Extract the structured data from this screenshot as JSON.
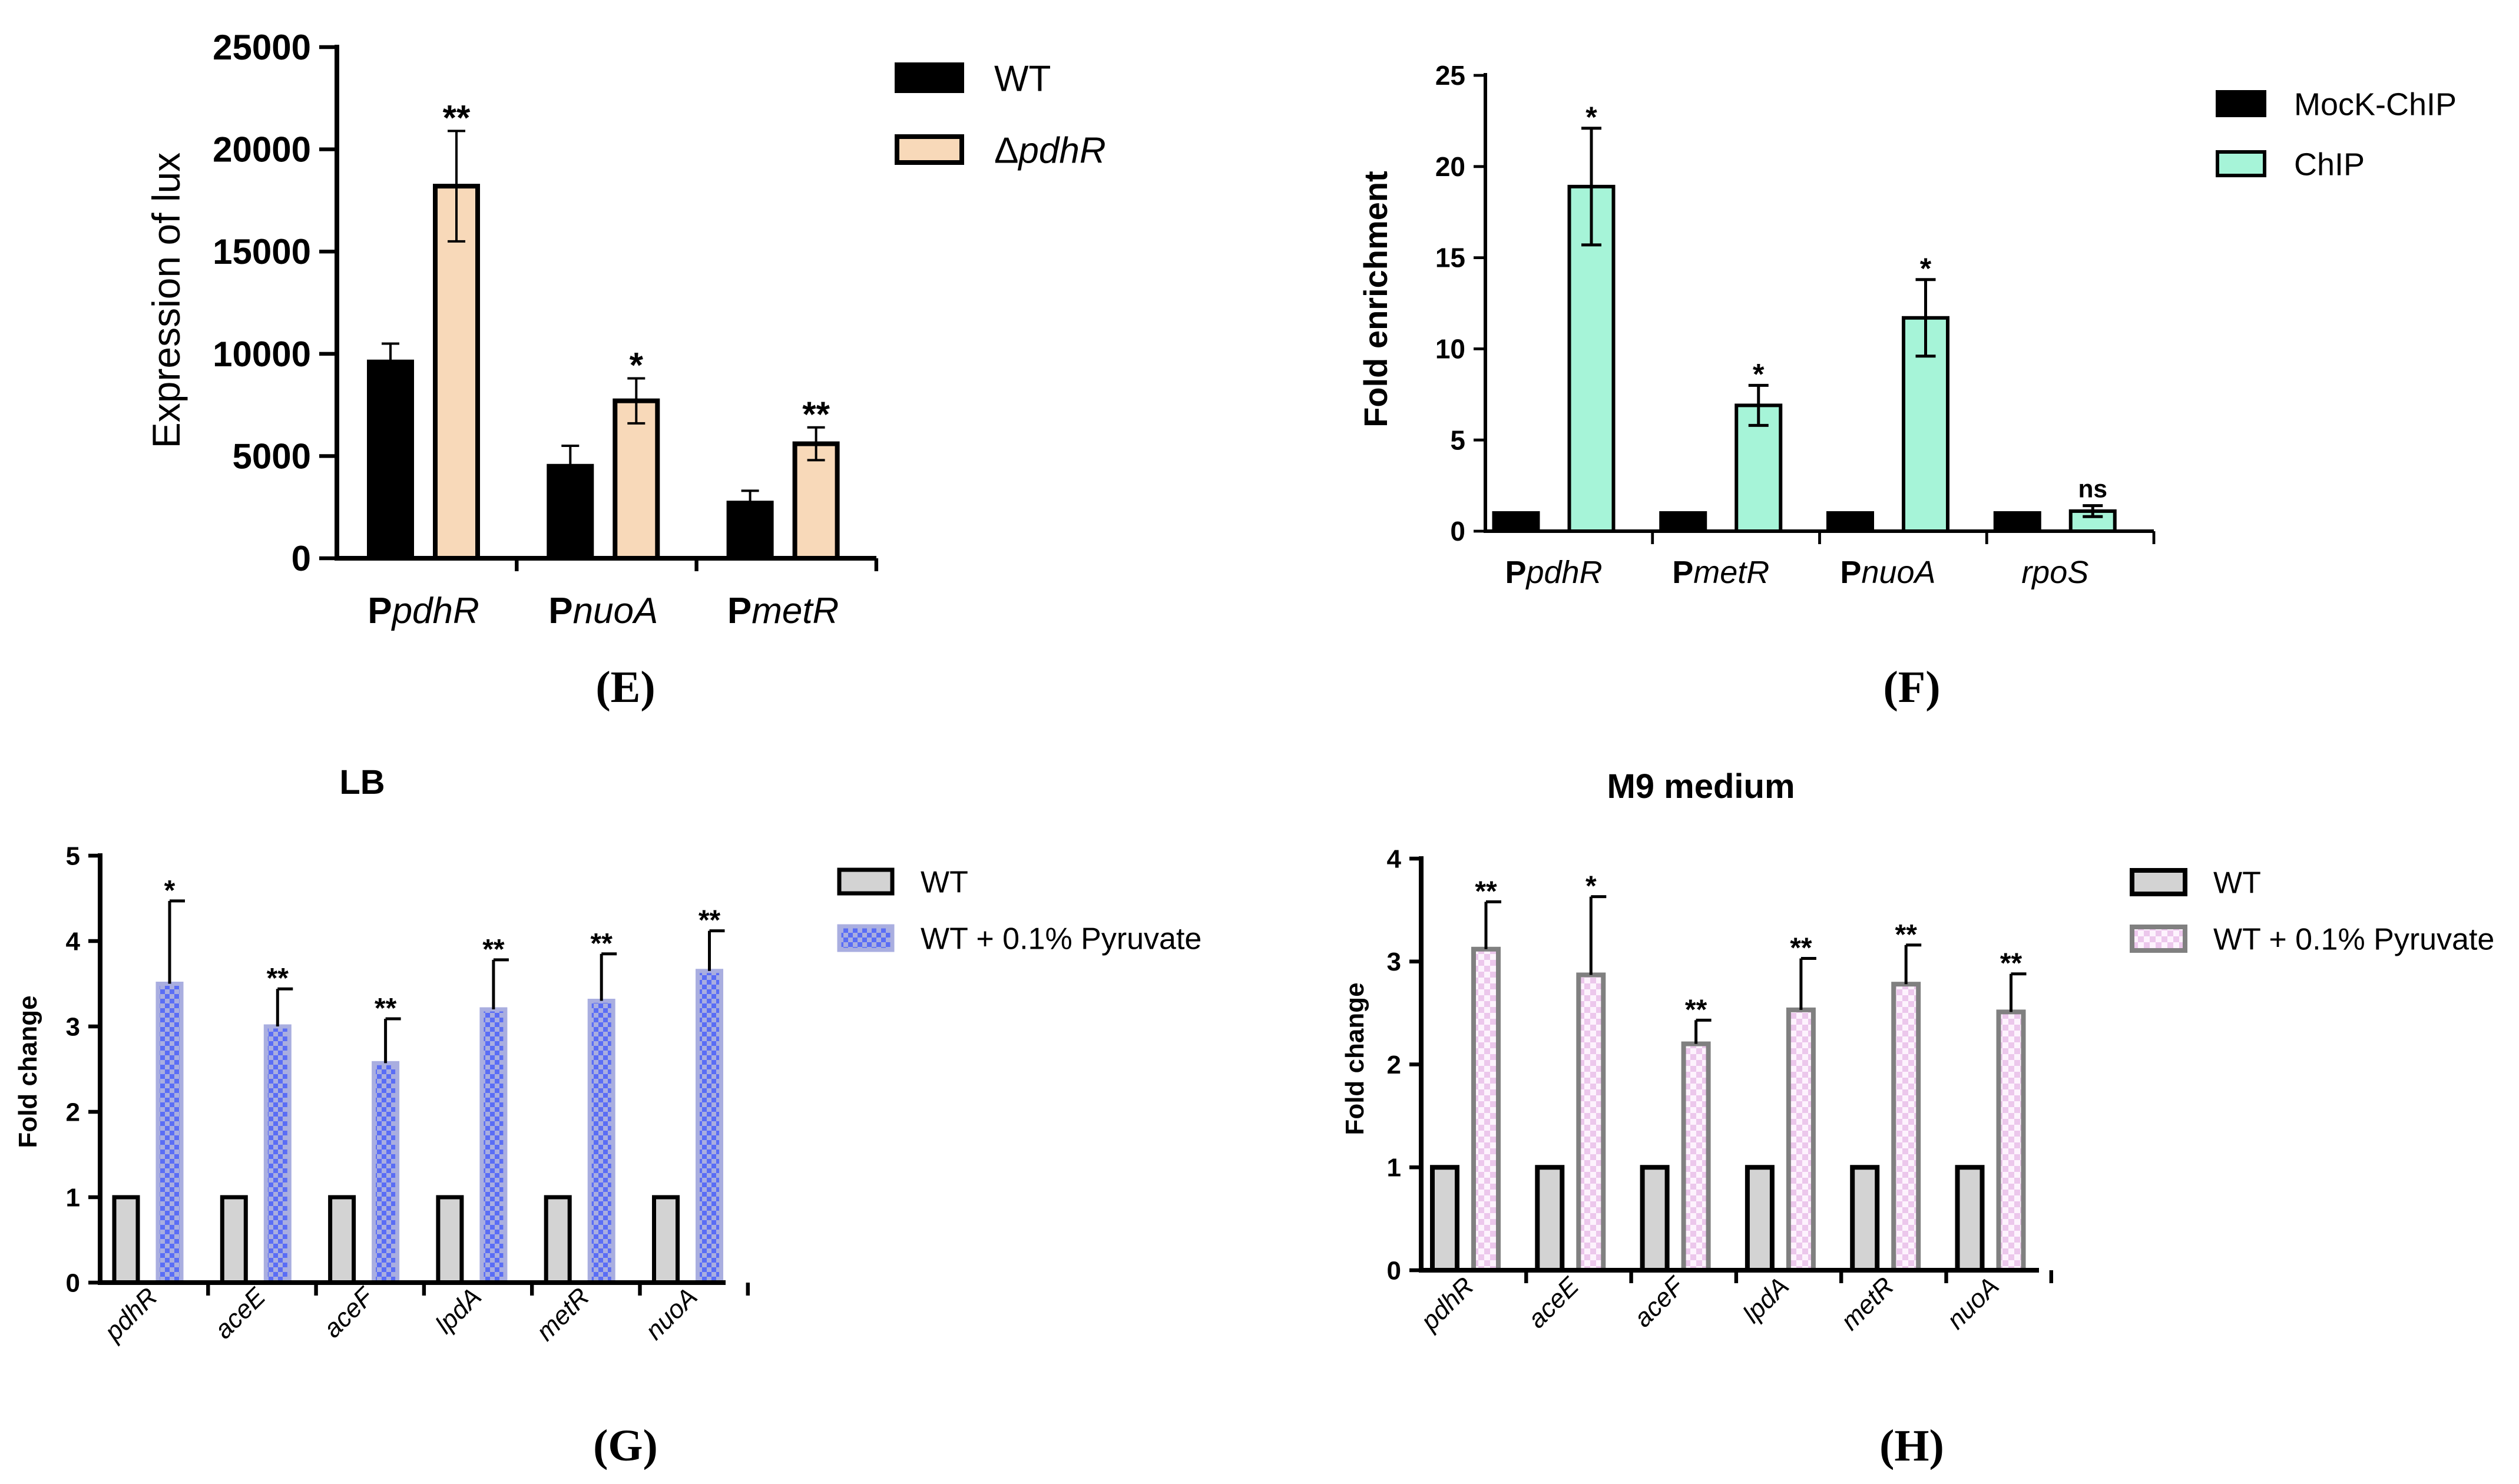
{
  "colors": {
    "wt_black": "#000000",
    "pdhR_peach": "#f8d9b9",
    "chip_mint": "#a6f4d8",
    "wt_grey": "#d3d3d3",
    "pyr_blue_a": "#5a6df5",
    "pyr_blue_b": "#a9aee0",
    "pyr_pink_a": "#ecc7ec",
    "pyr_pink_b": "#fdf3fd",
    "axis": "#000000"
  },
  "chart_data": [
    {
      "id": "E",
      "type": "bar",
      "panel_label": "(E)",
      "title": "",
      "ylabel": "Expression of lux",
      "xlabel": "",
      "ylim": [
        0,
        25000
      ],
      "yticks": [
        0,
        5000,
        10000,
        15000,
        20000,
        25000
      ],
      "ytick_labels": [
        "0",
        "5000",
        "10000",
        "15000",
        "20000",
        "25000"
      ],
      "categories": [
        {
          "prefix": "P",
          "italic": "pdhR"
        },
        {
          "prefix": "P",
          "italic": "nuoA"
        },
        {
          "prefix": "P",
          "italic": "metR"
        }
      ],
      "series": [
        {
          "name": "WT",
          "legend": {
            "prefix": "WT",
            "italic": ""
          },
          "values": [
            9600,
            4500,
            2700
          ],
          "errors": [
            900,
            1000,
            600
          ],
          "sig": [
            "",
            "",
            ""
          ]
        },
        {
          "name": "ΔpdhR",
          "legend": {
            "prefix": "Δ",
            "italic": "pdhR"
          },
          "values": [
            18200,
            7700,
            5600
          ],
          "errors": [
            2700,
            1100,
            800
          ],
          "sig": [
            "**",
            "*",
            "**"
          ]
        }
      ],
      "legend_position": "right"
    },
    {
      "id": "F",
      "type": "bar",
      "panel_label": "(F)",
      "title": "",
      "ylabel": "Fold enrichment",
      "xlabel": "",
      "ylim": [
        0,
        25
      ],
      "yticks": [
        0,
        5,
        10,
        15,
        20,
        25
      ],
      "ytick_labels": [
        "0",
        "5",
        "10",
        "15",
        "20",
        "25"
      ],
      "categories": [
        {
          "prefix": "P",
          "italic": "pdhR"
        },
        {
          "prefix": "P",
          "italic": "metR"
        },
        {
          "prefix": "P",
          "italic": "nuoA"
        },
        {
          "prefix": "",
          "italic": "rpoS"
        }
      ],
      "series": [
        {
          "name": "MocK-ChIP",
          "legend": {
            "prefix": "MocK-ChIP",
            "italic": ""
          },
          "values": [
            1,
            1,
            1,
            1
          ],
          "errors": [
            0,
            0,
            0,
            0
          ],
          "sig": [
            "",
            "",
            "",
            ""
          ]
        },
        {
          "name": "ChIP",
          "legend": {
            "prefix": "ChIP",
            "italic": ""
          },
          "values": [
            18.9,
            6.9,
            11.7,
            1.1
          ],
          "errors": [
            3.2,
            1.1,
            2.1,
            0.3
          ],
          "sig": [
            "*",
            "*",
            "*",
            "ns"
          ]
        }
      ],
      "legend_position": "right"
    },
    {
      "id": "G",
      "type": "bar",
      "panel_label": "(G)",
      "title": "LB",
      "ylabel": "Fold change",
      "xlabel": "",
      "ylim": [
        0,
        5
      ],
      "yticks": [
        0,
        1,
        2,
        3,
        4,
        5
      ],
      "ytick_labels": [
        "0",
        "1",
        "2",
        "3",
        "4",
        "5"
      ],
      "categories": [
        {
          "prefix": "",
          "italic": "pdhR"
        },
        {
          "prefix": "",
          "italic": "aceE"
        },
        {
          "prefix": "",
          "italic": "aceF"
        },
        {
          "prefix": "",
          "italic": "lpdA"
        },
        {
          "prefix": "",
          "italic": "metR"
        },
        {
          "prefix": "",
          "italic": "nuoA"
        }
      ],
      "series": [
        {
          "name": "WT",
          "legend": {
            "prefix": "WT",
            "italic": ""
          },
          "values": [
            1,
            1,
            1,
            1,
            1,
            1
          ],
          "errors": [
            0,
            0,
            0,
            0,
            0,
            0
          ],
          "sig": [
            "",
            "",
            "",
            "",
            "",
            ""
          ]
        },
        {
          "name": "WT + 0.1% Pyruvate",
          "legend": {
            "prefix": "WT + 0.1% Pyruvate",
            "italic": ""
          },
          "values": [
            3.5,
            3.0,
            2.57,
            3.2,
            3.3,
            3.65
          ],
          "errors": [
            0.97,
            0.44,
            0.52,
            0.58,
            0.55,
            0.47
          ],
          "sig": [
            "*",
            "**",
            "**",
            "**",
            "**",
            "**"
          ]
        }
      ],
      "legend_position": "right"
    },
    {
      "id": "H",
      "type": "bar",
      "panel_label": "(H)",
      "title": "M9 medium",
      "ylabel": "Fold change",
      "xlabel": "",
      "ylim": [
        0,
        4
      ],
      "yticks": [
        0,
        1,
        2,
        3,
        4
      ],
      "ytick_labels": [
        "0",
        "1",
        "2",
        "3",
        "4"
      ],
      "categories": [
        {
          "prefix": "",
          "italic": "pdhR"
        },
        {
          "prefix": "",
          "italic": "aceE"
        },
        {
          "prefix": "",
          "italic": "aceF"
        },
        {
          "prefix": "",
          "italic": "lpdA"
        },
        {
          "prefix": "",
          "italic": "metR"
        },
        {
          "prefix": "",
          "italic": "nuoA"
        }
      ],
      "series": [
        {
          "name": "WT",
          "legend": {
            "prefix": "WT",
            "italic": ""
          },
          "values": [
            1,
            1,
            1,
            1,
            1,
            1
          ],
          "errors": [
            0,
            0,
            0,
            0,
            0,
            0
          ],
          "sig": [
            "",
            "",
            "",
            "",
            "",
            ""
          ]
        },
        {
          "name": "WT + 0.1% Pyruvate",
          "legend": {
            "prefix": "WT + 0.1% Pyruvate",
            "italic": ""
          },
          "values": [
            3.12,
            2.87,
            2.2,
            2.53,
            2.78,
            2.51
          ],
          "errors": [
            0.46,
            0.76,
            0.23,
            0.5,
            0.38,
            0.37
          ],
          "sig": [
            "**",
            "*",
            "**",
            "**",
            "**",
            "**"
          ]
        }
      ],
      "legend_position": "right"
    }
  ]
}
